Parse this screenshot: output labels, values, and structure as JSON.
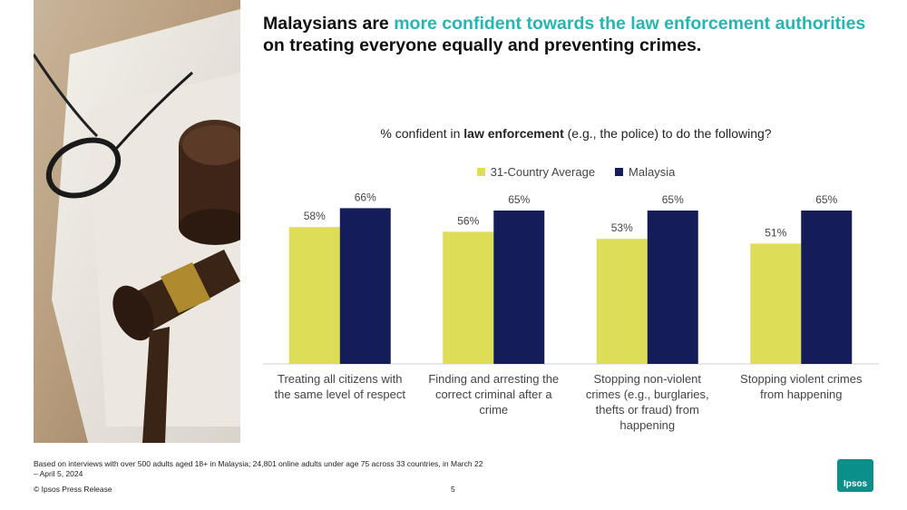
{
  "headline": {
    "part1": "Malaysians are ",
    "accent": "more confident towards the law enforcement authorities",
    "part2": "on treating everyone equally and preventing crimes."
  },
  "chart_title": {
    "prefix": "% confident in ",
    "bold": "law enforcement",
    "suffix": " (e.g., the police) to do the following?"
  },
  "colors": {
    "avg": "#dedd58",
    "malaysia": "#141d58",
    "accent": "#26b5b0",
    "logo": "#0a8f8b"
  },
  "chart_data": {
    "type": "bar",
    "categories": [
      [
        "Treating all citizens with",
        "the same level of respect"
      ],
      [
        "Finding and arresting the",
        "correct criminal after a",
        "crime"
      ],
      [
        "Stopping non-violent",
        "crimes (e.g., burglaries,",
        "thefts or fraud) from",
        "happening"
      ],
      [
        "Stopping violent crimes",
        "from happening"
      ]
    ],
    "series": [
      {
        "name": "31-Country Average",
        "values": [
          58,
          56,
          53,
          51
        ]
      },
      {
        "name": "Malaysia",
        "values": [
          66,
          65,
          65,
          65
        ]
      }
    ],
    "ylim": [
      0,
      100
    ],
    "unit": "%",
    "legend_position": "top-center",
    "grid": false
  },
  "footnote": "Based on interviews with over 500 adults aged 18+ in Malaysia; 24,801 online adults under age 75 across 33 countries, in March 22 – April 5, 2024",
  "copyright": "© Ipsos  Press Release",
  "page_number": "5",
  "logo_text": "Ipsos"
}
